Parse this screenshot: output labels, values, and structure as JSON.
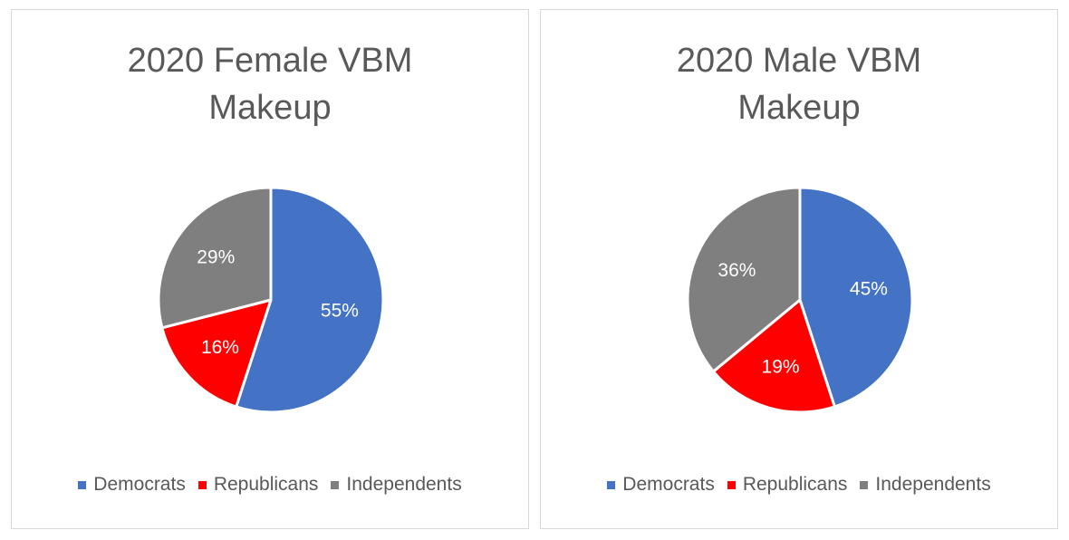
{
  "chart_data": [
    {
      "type": "pie",
      "title": "2020 Female VBM Makeup",
      "categories": [
        "Democrats",
        "Republicans",
        "Independents"
      ],
      "values": [
        55,
        16,
        29
      ],
      "labels": [
        "55%",
        "16%",
        "29%"
      ],
      "colors": [
        "#4472c4",
        "#ff0000",
        "#7f7f7f"
      ],
      "legend": "bottom"
    },
    {
      "type": "pie",
      "title": "2020 Male VBM Makeup",
      "categories": [
        "Democrats",
        "Republicans",
        "Independents"
      ],
      "values": [
        45,
        19,
        36
      ],
      "labels": [
        "45%",
        "19%",
        "36%"
      ],
      "colors": [
        "#4472c4",
        "#ff0000",
        "#7f7f7f"
      ],
      "legend": "bottom"
    }
  ]
}
